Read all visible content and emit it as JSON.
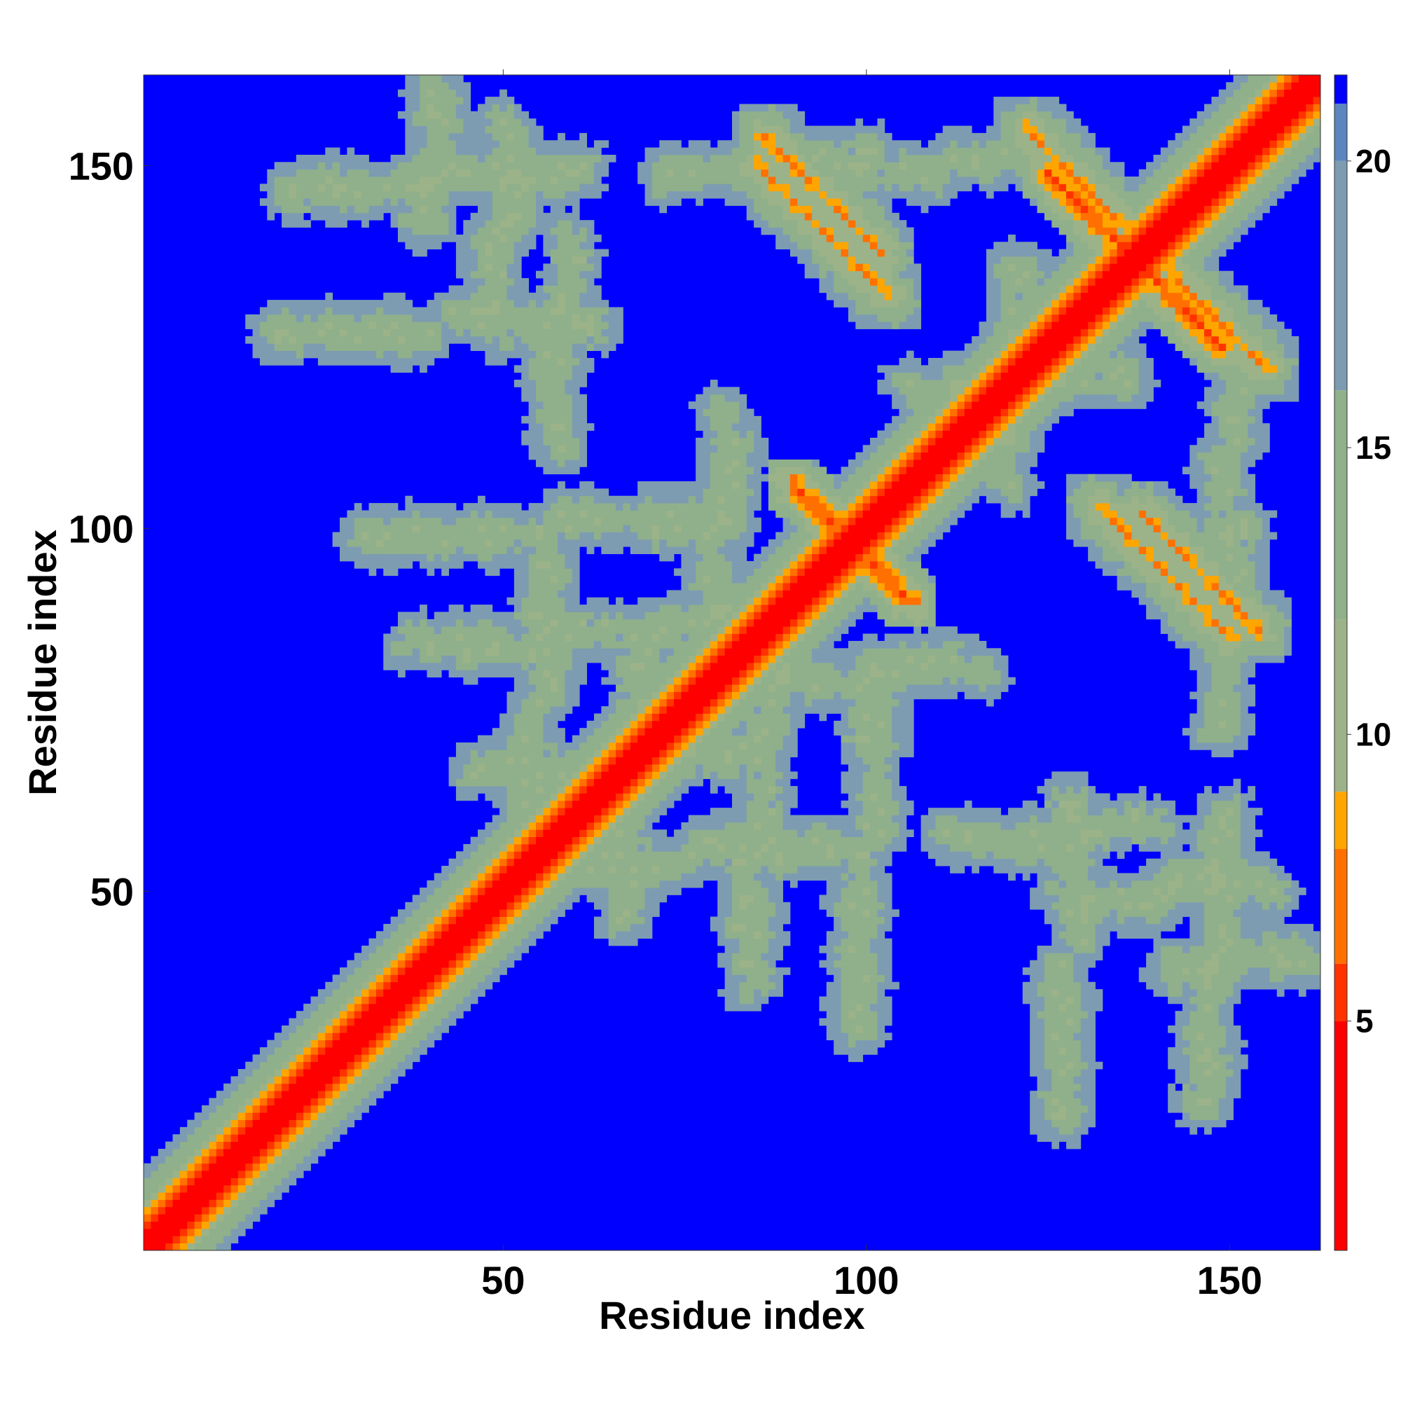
{
  "chart_data": {
    "type": "heatmap",
    "xlabel": "Residue index",
    "ylabel": "Residue index",
    "n_residues": 162,
    "xlim": [
      1,
      162
    ],
    "ylim": [
      1,
      162
    ],
    "x_ticks": [
      50,
      100,
      150
    ],
    "y_ticks": [
      50,
      100,
      150
    ],
    "colorbar": {
      "range": [
        1,
        21.5
      ],
      "ticks": [
        5,
        10,
        15,
        20
      ],
      "stops": [
        {
          "value": 1,
          "color": "#ff0000"
        },
        {
          "value": 5,
          "color": "#ff3300"
        },
        {
          "value": 6,
          "color": "#ff7000"
        },
        {
          "value": 8,
          "color": "#ffa500"
        },
        {
          "value": 9,
          "color": "#9cb389"
        },
        {
          "value": 12,
          "color": "#8fb08a"
        },
        {
          "value": 16,
          "color": "#7d9cb2"
        },
        {
          "value": 20,
          "color": "#5b86c0"
        },
        {
          "value": 21,
          "color": "#0000ff"
        }
      ],
      "cutoff": 20,
      "cutoff_color": "#0000ff"
    },
    "diagonal_band": {
      "full_width": 12,
      "core_width": 2
    },
    "contact_features": [
      {
        "kind": "hairpin",
        "i": 93,
        "j": 145,
        "len": 8
      },
      {
        "kind": "hairpin",
        "i": 130,
        "j": 145,
        "len": 9
      },
      {
        "kind": "cross",
        "i": 136,
        "j": 136,
        "len": 12
      },
      {
        "kind": "cross",
        "i": 97,
        "j": 97,
        "len": 8
      },
      {
        "kind": "hairpin",
        "i": 140,
        "j": 93,
        "len": 9
      },
      {
        "kind": "parallel",
        "i": 40,
        "j": 148,
        "len": 20
      },
      {
        "kind": "parallel",
        "i": 40,
        "j": 128,
        "len": 22
      },
      {
        "kind": "parallel",
        "i": 55,
        "j": 100,
        "len": 25
      },
      {
        "kind": "parallel",
        "i": 55,
        "j": 85,
        "len": 20
      },
      {
        "kind": "parallel",
        "i": 65,
        "j": 68,
        "len": 20
      },
      {
        "kind": "parallel",
        "i": 75,
        "j": 55,
        "len": 20
      },
      {
        "kind": "parallel",
        "i": 125,
        "j": 58,
        "len": 15
      },
      {
        "kind": "parallel",
        "i": 140,
        "j": 50,
        "len": 15
      },
      {
        "kind": "parallel",
        "i": 150,
        "j": 40,
        "len": 10
      },
      {
        "kind": "parallel",
        "i": 100,
        "j": 80,
        "len": 15
      },
      {
        "kind": "parallel",
        "i": 120,
        "j": 120,
        "len": 15
      },
      {
        "kind": "parallel",
        "i": 85,
        "j": 150,
        "len": 15
      },
      {
        "kind": "parallel",
        "i": 110,
        "j": 150,
        "len": 15
      }
    ]
  }
}
